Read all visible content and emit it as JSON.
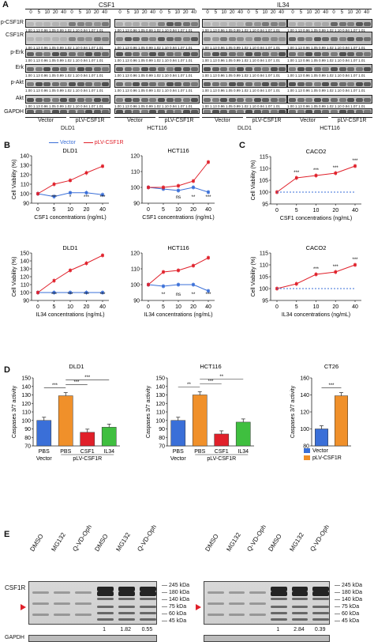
{
  "panel_a": {
    "letter": "A",
    "groups": [
      "CSF1",
      "IL34"
    ],
    "time_labels": [
      "0",
      "5",
      "10",
      "20",
      "40",
      "0",
      "5",
      "10",
      "20",
      "40"
    ],
    "rows": [
      "p-CSF1R",
      "CSF1R",
      "p-Erk",
      "Erk",
      "p-Akt",
      "Akt",
      "GAPDH"
    ],
    "lane_groups": [
      "Vector",
      "pLV-CSF1R",
      "Vector",
      "pLV-CSF1R",
      "Vector",
      "pLV-CSF1R",
      "Vector",
      "pLV-CSF1R"
    ],
    "cell_lines": [
      "DLD1",
      "HCT116",
      "DLD1",
      "HCT116"
    ],
    "quant_text": "1.00 1.13 0.96 1.05 0.99 1.02 1.10 0.94 1.07 1.01"
  },
  "panel_b": {
    "letter": "B",
    "legend": {
      "vector": "Vector",
      "plv": "pLV-CSF1R"
    },
    "colors": {
      "vector": "#3a6fd8",
      "plv": "#e0202a"
    }
  },
  "panel_c": {
    "letter": "C"
  },
  "chart_data": [
    {
      "type": "line",
      "title": "DLD1",
      "xlabel": "CSF1 concentrations (ng/mL)",
      "ylabel": "Cell Viability (%)",
      "x": [
        0,
        5,
        10,
        20,
        40
      ],
      "ylim": [
        90,
        140
      ],
      "yticks": [
        90,
        100,
        110,
        120,
        130,
        140
      ],
      "series": [
        {
          "name": "Vector",
          "values": [
            100,
            97,
            101,
            101,
            99
          ]
        },
        {
          "name": "pLV-CSF1R",
          "values": [
            100,
            110,
            114,
            122,
            129
          ]
        }
      ],
      "annotations": [
        "***",
        "*",
        "***",
        "***"
      ]
    },
    {
      "type": "line",
      "title": "HCT116",
      "xlabel": "CSF1 concentrations (ng/mL)",
      "ylabel": "",
      "x": [
        0,
        5,
        10,
        20,
        40
      ],
      "ylim": [
        90,
        120
      ],
      "yticks": [
        90,
        100,
        110,
        120
      ],
      "series": [
        {
          "name": "Vector",
          "values": [
            100,
            99,
            98,
            100,
            97
          ]
        },
        {
          "name": "pLV-CSF1R",
          "values": [
            100,
            100,
            101,
            104,
            116
          ]
        }
      ],
      "annotations": [
        "ns",
        "**",
        "***"
      ]
    },
    {
      "type": "line",
      "title": "CACO2",
      "xlabel": "CSF1 concentrations (ng/mL)",
      "ylabel": "Cell Viability (%)",
      "x": [
        0,
        5,
        10,
        20,
        40
      ],
      "ylim": [
        95,
        115
      ],
      "yticks": [
        95,
        100,
        105,
        110,
        115
      ],
      "series": [
        {
          "name": "pLV-CSF1R",
          "values": [
            100,
            106,
            107,
            108,
            111
          ]
        },
        {
          "name": "baseline",
          "values": [
            100,
            100,
            100,
            100,
            100
          ]
        }
      ],
      "annotations": [
        "***",
        "***",
        "***",
        "***"
      ]
    },
    {
      "type": "line",
      "title": "DLD1",
      "xlabel": "IL34 concentrations (ng/mL)",
      "ylabel": "Cell Viability (%)",
      "x": [
        0,
        5,
        10,
        20,
        40
      ],
      "ylim": [
        90,
        150
      ],
      "yticks": [
        90,
        100,
        110,
        120,
        130,
        140,
        150
      ],
      "series": [
        {
          "name": "Vector",
          "values": [
            100,
            100,
            100,
            100,
            100
          ]
        },
        {
          "name": "pLV-CSF1R",
          "values": [
            100,
            115,
            128,
            137,
            147
          ]
        }
      ],
      "annotations": [
        "***",
        "***",
        "***",
        "***"
      ]
    },
    {
      "type": "line",
      "title": "HCT116",
      "xlabel": "IL34 concentrations (ng/mL)",
      "ylabel": "",
      "x": [
        0,
        5,
        10,
        20,
        40
      ],
      "ylim": [
        90,
        120
      ],
      "yticks": [
        90,
        100,
        110,
        120
      ],
      "series": [
        {
          "name": "Vector",
          "values": [
            100,
            99,
            100,
            100,
            96
          ]
        },
        {
          "name": "pLV-CSF1R",
          "values": [
            100,
            108,
            109,
            112,
            117
          ]
        }
      ],
      "annotations": [
        "**",
        "ns",
        "**",
        "***"
      ]
    },
    {
      "type": "line",
      "title": "CACO2",
      "xlabel": "IL34 concentrations (ng/mL)",
      "ylabel": "Cell Viability (%)",
      "x": [
        0,
        5,
        10,
        20,
        40
      ],
      "ylim": [
        95,
        115
      ],
      "yticks": [
        95,
        100,
        105,
        110,
        115
      ],
      "series": [
        {
          "name": "pLV-CSF1R",
          "values": [
            100,
            102,
            106,
            107,
            110
          ]
        },
        {
          "name": "baseline",
          "values": [
            100,
            100,
            100,
            100,
            100
          ]
        }
      ],
      "annotations": [
        "***",
        "***",
        "***"
      ]
    },
    {
      "type": "bar",
      "title": "DLD1",
      "ylabel": "Caspases 3/7 activity",
      "categories": [
        "PBS",
        "PBS",
        "CSF1",
        "IL34"
      ],
      "group_labels": [
        "Vector",
        "pLV-CSF1R"
      ],
      "values": [
        100,
        129,
        86,
        92
      ],
      "ylim": [
        70,
        150
      ],
      "yticks": [
        70,
        80,
        90,
        100,
        110,
        120,
        130,
        140,
        150
      ],
      "colors": [
        "#3a6fd8",
        "#f0902a",
        "#e0202a",
        "#3fbf3f"
      ],
      "annotations": [
        "***",
        "***",
        "***"
      ]
    },
    {
      "type": "bar",
      "title": "HCT116",
      "ylabel": "Caspases 3/7 activity",
      "categories": [
        "PBS",
        "PBS",
        "CSF1",
        "IL34"
      ],
      "group_labels": [
        "Vector",
        "pLV-CSF1R"
      ],
      "values": [
        100,
        130,
        84,
        98
      ],
      "ylim": [
        70,
        150
      ],
      "yticks": [
        70,
        80,
        90,
        100,
        110,
        120,
        130,
        140,
        150
      ],
      "colors": [
        "#3a6fd8",
        "#f0902a",
        "#e0202a",
        "#3fbf3f"
      ],
      "annotations": [
        "**",
        "***",
        "**"
      ]
    },
    {
      "type": "bar",
      "title": "CT26",
      "ylabel": "Caspases 3/7 activity",
      "categories": [
        "Vector",
        "pLV-CSF1R"
      ],
      "values": [
        100,
        139
      ],
      "ylim": [
        80,
        160
      ],
      "yticks": [
        80,
        100,
        120,
        140,
        160
      ],
      "colors": [
        "#3a6fd8",
        "#f0902a"
      ],
      "legend": [
        "Vector",
        "pLV-CSF1R"
      ],
      "annotations": [
        "***"
      ]
    }
  ],
  "panel_d": {
    "letter": "D"
  },
  "panel_e": {
    "letter": "E",
    "treatments": [
      "DMSO",
      "MG132",
      "Q-VD-Oph",
      "DMSO",
      "MG132",
      "Q-VD-Oph"
    ],
    "row_label": "CSF1R",
    "gapdh_label": "GAPDH",
    "markers": [
      "245 kDa",
      "180 kDa",
      "140 kDa",
      "75 kDa",
      "60 kDa",
      "45 kDa"
    ],
    "left_quant": [
      "1",
      "1.82",
      "0.55"
    ],
    "right_quant": [
      "1",
      "2.84",
      "0.39"
    ]
  }
}
